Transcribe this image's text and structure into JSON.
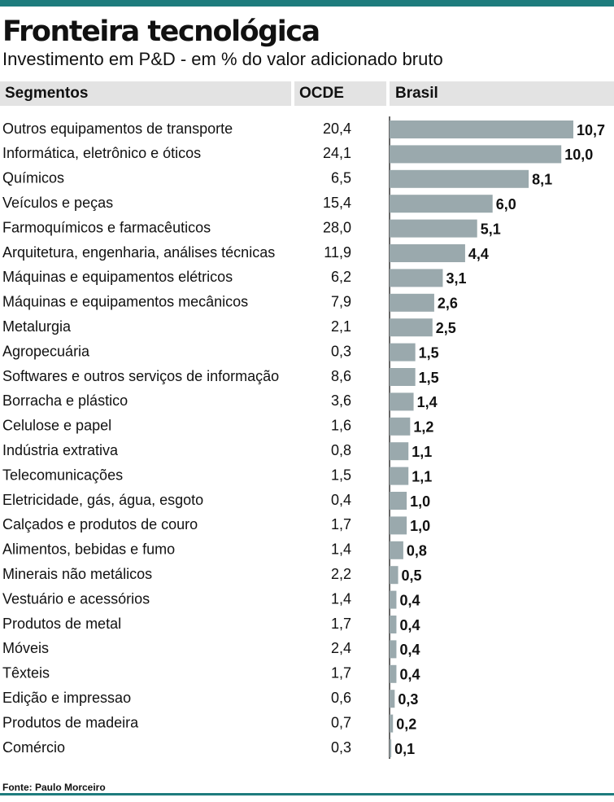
{
  "chart_data": {
    "type": "bar",
    "orientation": "horizontal",
    "title": "Fronteira tecnológica",
    "subtitle": "Investimento em P&D - em % do valor adicionado bruto",
    "category_header": "Segmentos",
    "source": "Fonte: Paulo Morceiro",
    "categories": [
      "Outros equipamentos de transporte",
      "Informática, eletrônico e óticos",
      "Químicos",
      "Veículos e peças",
      "Farmoquímicos e farmacêuticos",
      "Arquitetura, engenharia, análises técnicas",
      "Máquinas e equipamentos elétricos",
      "Máquinas e equipamentos mecânicos",
      "Metalurgia",
      "Agropecuária",
      "Softwares e outros serviços de informação",
      "Borracha e plástico",
      "Celulose e papel",
      "Indústria extrativa",
      "Telecomunicações",
      "Eletricidade, gás, água, esgoto",
      "Calçados e produtos de couro",
      "Alimentos, bebidas e fumo",
      "Minerais não metálicos",
      "Vestuário e acessórios",
      "Produtos de metal",
      "Móveis",
      "Têxteis",
      "Edição e impressao",
      "Produtos de madeira",
      "Comércio"
    ],
    "series": [
      {
        "name": "OCDE",
        "values": [
          20.4,
          24.1,
          6.5,
          15.4,
          28.0,
          11.9,
          6.2,
          7.9,
          2.1,
          0.3,
          8.6,
          3.6,
          1.6,
          0.8,
          1.5,
          0.4,
          1.7,
          1.4,
          2.2,
          1.4,
          1.7,
          2.4,
          1.7,
          0.6,
          0.7,
          0.3
        ],
        "value_labels": [
          "20,4",
          "24,1",
          "6,5",
          "15,4",
          "28,0",
          "11,9",
          "6,2",
          "7,9",
          "2,1",
          "0,3",
          "8,6",
          "3,6",
          "1,6",
          "0,8",
          "1,5",
          "0,4",
          "1,7",
          "1,4",
          "2,2",
          "1,4",
          "1,7",
          "2,4",
          "1,7",
          "0,6",
          "0,7",
          "0,3"
        ]
      },
      {
        "name": "Brasil",
        "color": "#9aa9ad",
        "values": [
          10.7,
          10.0,
          8.1,
          6.0,
          5.1,
          4.4,
          3.1,
          2.6,
          2.5,
          1.5,
          1.5,
          1.4,
          1.2,
          1.1,
          1.1,
          1.0,
          1.0,
          0.8,
          0.5,
          0.4,
          0.4,
          0.4,
          0.4,
          0.3,
          0.2,
          0.1
        ],
        "value_labels": [
          "10,7",
          "10,0",
          "8,1",
          "6,0",
          "5,1",
          "4,4",
          "3,1",
          "2,6",
          "2,5",
          "1,5",
          "1,5",
          "1,4",
          "1,2",
          "1,1",
          "1,1",
          "1,0",
          "1,0",
          "0,8",
          "0,5",
          "0,4",
          "0,4",
          "0,4",
          "0,4",
          "0,3",
          "0,2",
          "0,1"
        ]
      }
    ],
    "xlim": [
      0,
      12.5
    ]
  }
}
